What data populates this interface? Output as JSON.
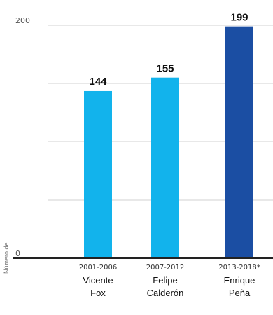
{
  "chart_data": {
    "type": "bar",
    "categories": [
      "2001-2006 Vicente Fox",
      "2007-2012 Felipe Calderón",
      "2013-2018* Enrique Peña"
    ],
    "periods": [
      "2001-2006",
      "2007-2012",
      "2013-2018*"
    ],
    "names": [
      [
        "Vicente",
        "Fox"
      ],
      [
        "Felipe",
        "Calderón"
      ],
      [
        "Enrique",
        "Peña"
      ]
    ],
    "values": [
      144,
      155,
      199
    ],
    "value_labels": [
      "144",
      "155",
      "199"
    ],
    "colors": [
      "#12b3ec",
      "#12b3ec",
      "#1b4ea3"
    ],
    "ylim": [
      0,
      200
    ],
    "yticks": [
      0,
      200
    ],
    "ytick_labels": [
      "0",
      "200"
    ],
    "gridlines": [
      0,
      50,
      100,
      150,
      200
    ],
    "ylabel": "Número de ...",
    "title": "",
    "grid": true
  }
}
